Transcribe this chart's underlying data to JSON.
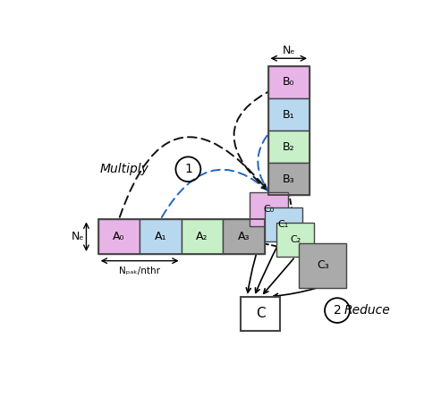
{
  "fig_width": 4.74,
  "fig_height": 4.54,
  "bg_color": "#ffffff",
  "A_blocks": [
    {
      "label": "A₀",
      "color": "#e8b4e8"
    },
    {
      "label": "A₁",
      "color": "#b8d8f0"
    },
    {
      "label": "A₂",
      "color": "#c8f0c8"
    },
    {
      "label": "A₃",
      "color": "#aaaaaa"
    }
  ],
  "B_blocks": [
    {
      "label": "B₀",
      "color": "#e8b4e8"
    },
    {
      "label": "B₁",
      "color": "#b8d8f0"
    },
    {
      "label": "B₂",
      "color": "#c8f0c8"
    },
    {
      "label": "B₃",
      "color": "#aaaaaa"
    }
  ],
  "C_blocks": [
    {
      "label": "C₀",
      "color": "#e8b4e8"
    },
    {
      "label": "C₁",
      "color": "#b8d8f0"
    },
    {
      "label": "C₂",
      "color": "#c8f0c8"
    },
    {
      "label": "C₃",
      "color": "#aaaaaa"
    }
  ],
  "C_label": "C",
  "multiply_label": "Multiply",
  "reduce_label": "Reduce",
  "Ne_label": "Nₑ",
  "Npack_label": "Nₚₐ⁣ₖ/nthr",
  "arrow_colors_AB": [
    "#111111",
    "#2266bb",
    "#33aa33",
    "#111111"
  ],
  "arrow_dotted_colors": [
    "#111111",
    "#2266bb",
    "#33aa33",
    "#111111"
  ]
}
